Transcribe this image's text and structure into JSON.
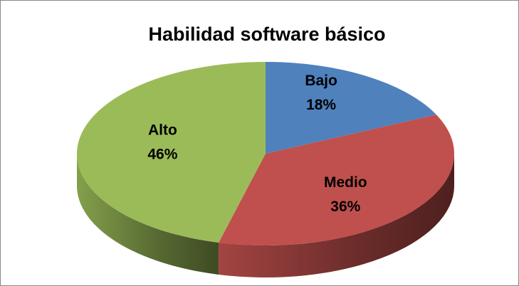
{
  "chart_data": {
    "type": "pie",
    "title": "Habilidad software básico",
    "categories": [
      "Bajo",
      "Medio",
      "Alto"
    ],
    "values": [
      18,
      36,
      46
    ],
    "value_labels": [
      "18%",
      "36%",
      "46%"
    ],
    "colors": [
      "#4f81bd",
      "#c0504d",
      "#9bbb59"
    ]
  }
}
